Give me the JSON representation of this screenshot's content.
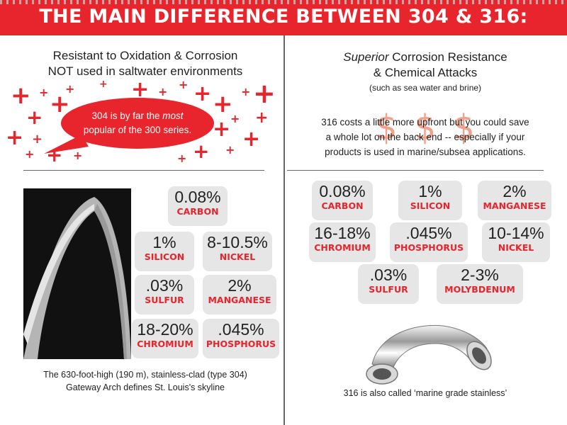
{
  "title": "THE MAIN DIFFERENCE BETWEEN 304 & 316:",
  "left": {
    "line1": "Resistant to Oxidation & Corrosion",
    "line2": "NOT used in saltwater environments",
    "bubble_a": "304 is by far the ",
    "bubble_em": "most",
    "bubble_b": "popular of the 300 series.",
    "elements": [
      {
        "value": "0.08%",
        "name": "CARBON"
      },
      {
        "value": "1%",
        "name": "SILICON"
      },
      {
        "value": "8-10.5%",
        "name": "NICKEL"
      },
      {
        "value": ".03%",
        "name": "SULFUR"
      },
      {
        "value": "2%",
        "name": "MANGANESE"
      },
      {
        "value": "18-20%",
        "name": "CHROMIUM"
      },
      {
        "value": ".045%",
        "name": "PHOSPHORUS"
      }
    ],
    "caption1": "The 630-foot-high (190 m), stainless-clad (type 304)",
    "caption2": "Gateway Arch defines St. Louis's skyline"
  },
  "right": {
    "heading_em": "Superior",
    "heading_rest": " Corrosion Resistance",
    "heading2": "& Chemical Attacks",
    "sub": "(such as sea water and brine)",
    "dollars": "$$$",
    "cost1": "316 costs a little more upfront but you could save",
    "cost2": "a whole lot on the back end -- especially if your",
    "cost3": "products is used  in marine/subsea applications.",
    "elements": [
      {
        "value": "0.08%",
        "name": "CARBON"
      },
      {
        "value": "1%",
        "name": "SILICON"
      },
      {
        "value": "2%",
        "name": "MANGANESE"
      },
      {
        "value": "16-18%",
        "name": "CHROMIUM"
      },
      {
        "value": ".045%",
        "name": "PHOSPHORUS"
      },
      {
        "value": "10-14%",
        "name": "NICKEL"
      },
      {
        "value": ".03%",
        "name": "SULFUR"
      },
      {
        "value": "2-3%",
        "name": "MOLYBDENUM"
      }
    ],
    "caption": "316 is also called ‘marine grade stainless’"
  },
  "colors": {
    "accent": "#e8242c",
    "cell": "#e6e6e6"
  },
  "icons": [
    "plus-icon",
    "speech-bubble",
    "dollar-icon"
  ]
}
